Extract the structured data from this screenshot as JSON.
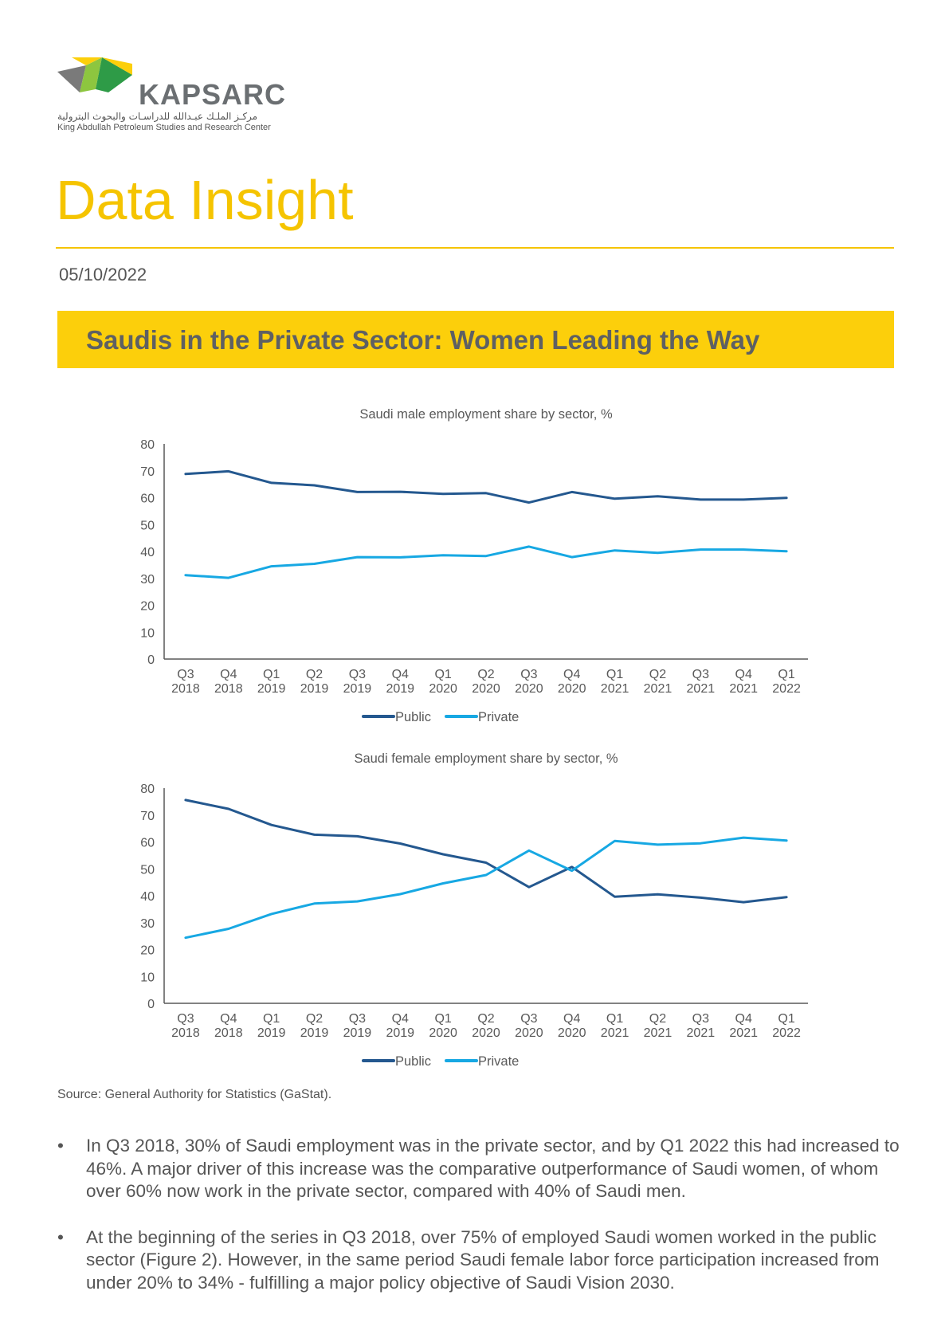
{
  "header": {
    "logo_name": "KAPSARC",
    "logo_arabic": "مركـز الملـك عبـدالله للدراسـات والبحوث البترولية",
    "logo_subtitle": "King Abdullah Petroleum Studies and Research Center",
    "document_type": "Data Insight",
    "date": "05/10/2022"
  },
  "banner": {
    "title": "Saudis in the Private Sector: Women Leading the Way"
  },
  "colors": {
    "public": "#24588f",
    "private": "#17a8e3",
    "accent": "#fccf0b",
    "title_yellow": "#f5c400"
  },
  "chart_data": [
    {
      "type": "line",
      "title": "Saudi male employment share by sector, %",
      "ylim": [
        0,
        80
      ],
      "yticks": [
        "0",
        "10",
        "20",
        "30",
        "40",
        "50",
        "60",
        "70",
        "80"
      ],
      "x": [
        {
          "q": "Q3",
          "y": "2018"
        },
        {
          "q": "Q4",
          "y": "2018"
        },
        {
          "q": "Q1",
          "y": "2019"
        },
        {
          "q": "Q2",
          "y": "2019"
        },
        {
          "q": "Q3",
          "y": "2019"
        },
        {
          "q": "Q4",
          "y": "2019"
        },
        {
          "q": "Q1",
          "y": "2020"
        },
        {
          "q": "Q2",
          "y": "2020"
        },
        {
          "q": "Q3",
          "y": "2020"
        },
        {
          "q": "Q4",
          "y": "2020"
        },
        {
          "q": "Q1",
          "y": "2021"
        },
        {
          "q": "Q2",
          "y": "2021"
        },
        {
          "q": "Q3",
          "y": "2021"
        },
        {
          "q": "Q4",
          "y": "2021"
        },
        {
          "q": "Q1",
          "y": "2022"
        }
      ],
      "legend_position": "bottom",
      "series": [
        {
          "name": "Public",
          "color": "#24588f",
          "values": [
            68.8,
            69.8,
            65.5,
            64.6,
            62.1,
            62.2,
            61.4,
            61.7,
            58.2,
            62.1,
            59.6,
            60.5,
            59.3,
            59.3,
            59.9
          ]
        },
        {
          "name": "Private",
          "color": "#17a8e3",
          "values": [
            31.2,
            30.2,
            34.5,
            35.4,
            37.9,
            37.8,
            38.6,
            38.3,
            41.8,
            37.9,
            40.4,
            39.5,
            40.7,
            40.7,
            40.1
          ]
        }
      ]
    },
    {
      "type": "line",
      "title": "Saudi female employment share by sector, %",
      "ylim": [
        0,
        80
      ],
      "yticks": [
        "0",
        "10",
        "20",
        "30",
        "40",
        "50",
        "60",
        "70",
        "80"
      ],
      "x": [
        {
          "q": "Q3",
          "y": "2018"
        },
        {
          "q": "Q4",
          "y": "2018"
        },
        {
          "q": "Q1",
          "y": "2019"
        },
        {
          "q": "Q2",
          "y": "2019"
        },
        {
          "q": "Q3",
          "y": "2019"
        },
        {
          "q": "Q4",
          "y": "2019"
        },
        {
          "q": "Q1",
          "y": "2020"
        },
        {
          "q": "Q2",
          "y": "2020"
        },
        {
          "q": "Q3",
          "y": "2020"
        },
        {
          "q": "Q4",
          "y": "2020"
        },
        {
          "q": "Q1",
          "y": "2021"
        },
        {
          "q": "Q2",
          "y": "2021"
        },
        {
          "q": "Q3",
          "y": "2021"
        },
        {
          "q": "Q4",
          "y": "2021"
        },
        {
          "q": "Q1",
          "y": "2022"
        }
      ],
      "legend_position": "bottom",
      "series": [
        {
          "name": "Public",
          "color": "#24588f",
          "values": [
            75.6,
            72.3,
            66.3,
            62.7,
            62.1,
            59.4,
            55.4,
            52.3,
            43.2,
            50.7,
            39.6,
            40.5,
            39.3,
            37.6,
            39.5
          ]
        },
        {
          "name": "Private",
          "color": "#17a8e3",
          "values": [
            24.4,
            27.7,
            33.2,
            37.1,
            37.9,
            40.6,
            44.6,
            47.7,
            56.8,
            49.3,
            60.4,
            59.0,
            59.5,
            61.6,
            60.5
          ]
        }
      ]
    }
  ],
  "source": "Source: General Authority for Statistics (GaStat).",
  "bullets": [
    "In Q3 2018, 30% of Saudi employment was in the private sector, and by Q1 2022 this had increased to 46%. A major driver of this increase was the comparative outperformance of Saudi women, of whom over 60% now work in the private sector, compared with 40% of Saudi men.",
    "At the beginning of the series in Q3 2018, over 75% of employed Saudi women worked in the public sector (Figure 2). However, in the same period Saudi female labor force participation increased from under 20% to 34% - fulfilling a major policy objective of Saudi Vision 2030."
  ],
  "bullet_symbol": "•"
}
